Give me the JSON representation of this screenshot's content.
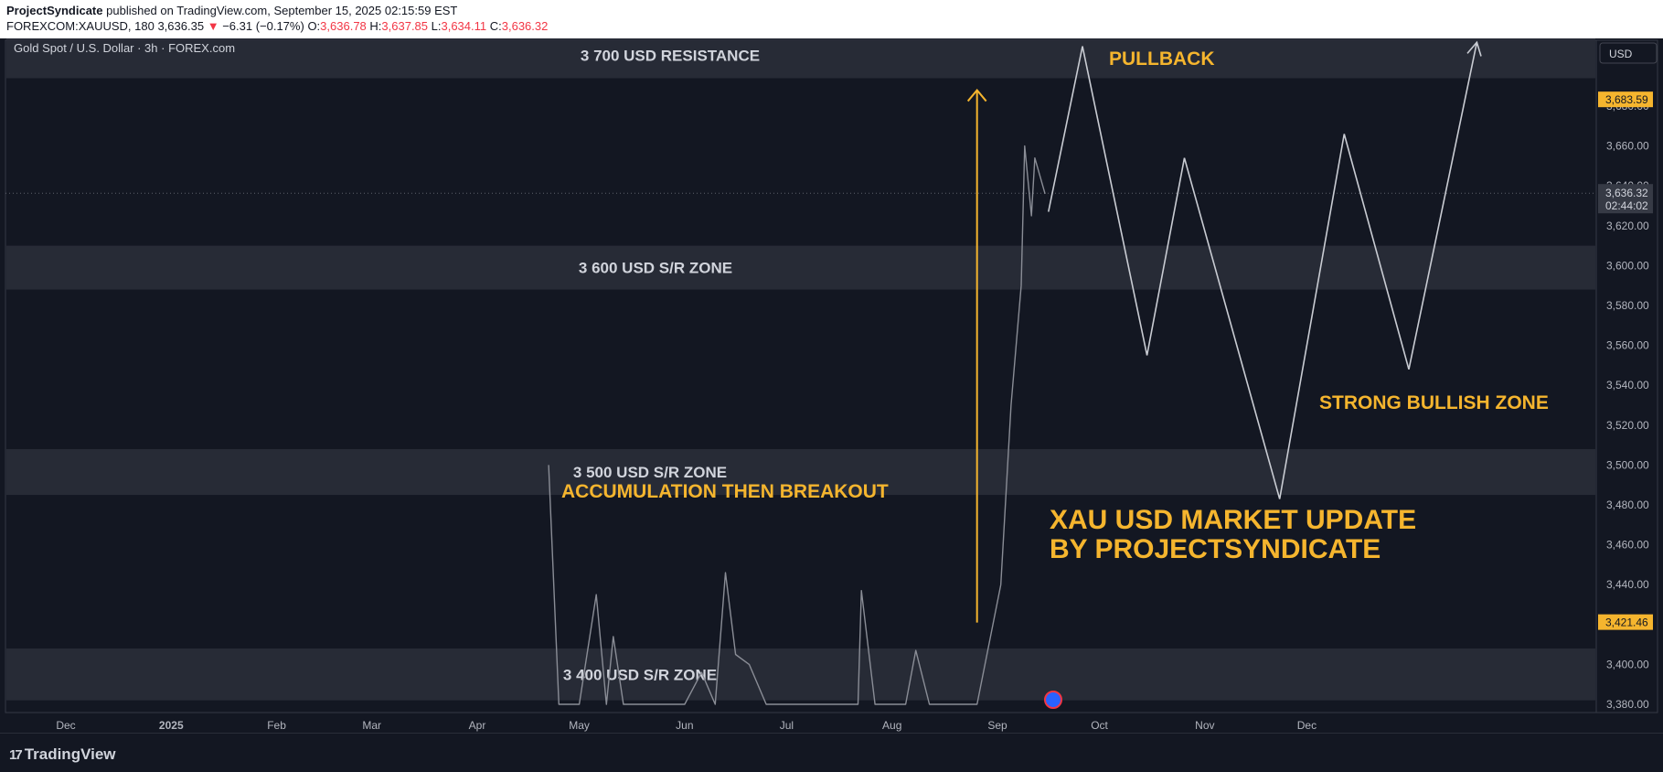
{
  "header": {
    "author": "ProjectSyndicate",
    "published_text": "published on TradingView.com, September 15, 2025 02:15:59 EST",
    "symbol": "FOREXCOM:XAUUSD, 180",
    "last": "3,636.35",
    "change_arrow": "▼",
    "change": "−6.31 (−0.17%)",
    "o_label": "O:",
    "o_value": "3,636.78",
    "h_label": "H:",
    "h_value": "3,637.85",
    "l_label": "L:",
    "l_value": "3,634.11",
    "c_label": "C:",
    "c_value": "3,636.32"
  },
  "chart_title": "Gold Spot / U.S. Dollar · 3h · FOREX.com",
  "currency_button": "USD",
  "footer": {
    "logo_text": "TradingView",
    "logo_mark": "17"
  },
  "colors": {
    "background": "#131722",
    "zone": "#2a2e39",
    "annotation": "#f5b52e",
    "projection": "#c9ccd3",
    "candles": "#8a8d96",
    "label_badge": "#f5b52e"
  },
  "chart_data": {
    "type": "line",
    "ylim": [
      3376,
      3717
    ],
    "x_tick_labels": [
      "Dec",
      "2025",
      "Feb",
      "Mar",
      "Apr",
      "May",
      "Jun",
      "Jul",
      "Aug",
      "Sep",
      "Oct",
      "Nov",
      "Dec"
    ],
    "y_ticks": [
      3380,
      3400,
      3420,
      3440,
      3460,
      3480,
      3500,
      3520,
      3540,
      3560,
      3580,
      3600,
      3620,
      3640,
      3660,
      3680
    ],
    "y_tick_labels": [
      "3,380.00",
      "3,400.00",
      "3,420.00",
      "3,440.00",
      "3,460.00",
      "3,480.00",
      "3,500.00",
      "3,520.00",
      "3,540.00",
      "3,560.00",
      "3,580.00",
      "3,600.00",
      "3,620.00",
      "3,640.00",
      "3,660.00",
      "3,680.00"
    ],
    "price_labels": [
      {
        "value": 3683.59,
        "text": "3,683.59",
        "style": "highlight"
      },
      {
        "value": 3636.32,
        "text": "3,636.32",
        "sub": "02:44:02",
        "style": "current"
      },
      {
        "value": 3421.46,
        "text": "3,421.46",
        "style": "highlight"
      }
    ],
    "zones": [
      {
        "label": "3 700 USD RESISTANCE",
        "from": 3694,
        "to": 3717
      },
      {
        "label": "3 600 USD S/R ZONE",
        "from": 3588,
        "to": 3610
      },
      {
        "label": "3 500 USD S/R ZONE",
        "from": 3485,
        "to": 3508
      },
      {
        "label": "3 400 USD S/R ZONE",
        "from": 3382,
        "to": 3408
      }
    ],
    "annotations": [
      {
        "text": "PULLBACK"
      },
      {
        "text": "STRONG BULLISH ZONE"
      },
      {
        "text": "ACCUMULATION THEN BREAKOUT"
      },
      {
        "text": "XAU USD MARKET UPDATE"
      },
      {
        "text": "BY PROJECTSYNDICATE"
      }
    ],
    "projection_path": [
      {
        "x": "2025-09-16",
        "y": 3627
      },
      {
        "x": "2025-09-26",
        "y": 3710
      },
      {
        "x": "2025-10-15",
        "y": 3555
      },
      {
        "x": "2025-10-26",
        "y": 3654
      },
      {
        "x": "2025-11-23",
        "y": 3483
      },
      {
        "x": "2025-12-12",
        "y": 3666
      },
      {
        "x": "2025-12-31",
        "y": 3548
      },
      {
        "x": "2026-01-20",
        "y": 3712
      }
    ],
    "breakout_arrow": {
      "x": "2025-08-26",
      "from": 3421,
      "to": 3688
    },
    "price_series": [
      {
        "x": "2025-04-22",
        "y": 3500
      },
      {
        "x": "2025-04-25",
        "y": 3380
      },
      {
        "x": "2025-05-01",
        "y": 3380
      },
      {
        "x": "2025-05-06",
        "y": 3435
      },
      {
        "x": "2025-05-09",
        "y": 3380
      },
      {
        "x": "2025-05-11",
        "y": 3414
      },
      {
        "x": "2025-05-14",
        "y": 3380
      },
      {
        "x": "2025-06-01",
        "y": 3380
      },
      {
        "x": "2025-06-06",
        "y": 3396
      },
      {
        "x": "2025-06-10",
        "y": 3380
      },
      {
        "x": "2025-06-13",
        "y": 3446
      },
      {
        "x": "2025-06-16",
        "y": 3405
      },
      {
        "x": "2025-06-20",
        "y": 3400
      },
      {
        "x": "2025-06-25",
        "y": 3380
      },
      {
        "x": "2025-07-22",
        "y": 3380
      },
      {
        "x": "2025-07-23",
        "y": 3437
      },
      {
        "x": "2025-07-27",
        "y": 3380
      },
      {
        "x": "2025-08-05",
        "y": 3380
      },
      {
        "x": "2025-08-08",
        "y": 3407
      },
      {
        "x": "2025-08-12",
        "y": 3380
      },
      {
        "x": "2025-08-26",
        "y": 3380
      },
      {
        "x": "2025-09-02",
        "y": 3440
      },
      {
        "x": "2025-09-05",
        "y": 3530
      },
      {
        "x": "2025-09-08",
        "y": 3590
      },
      {
        "x": "2025-09-09",
        "y": 3660
      },
      {
        "x": "2025-09-11",
        "y": 3625
      },
      {
        "x": "2025-09-12",
        "y": 3654
      },
      {
        "x": "2025-09-15",
        "y": 3636
      }
    ]
  }
}
